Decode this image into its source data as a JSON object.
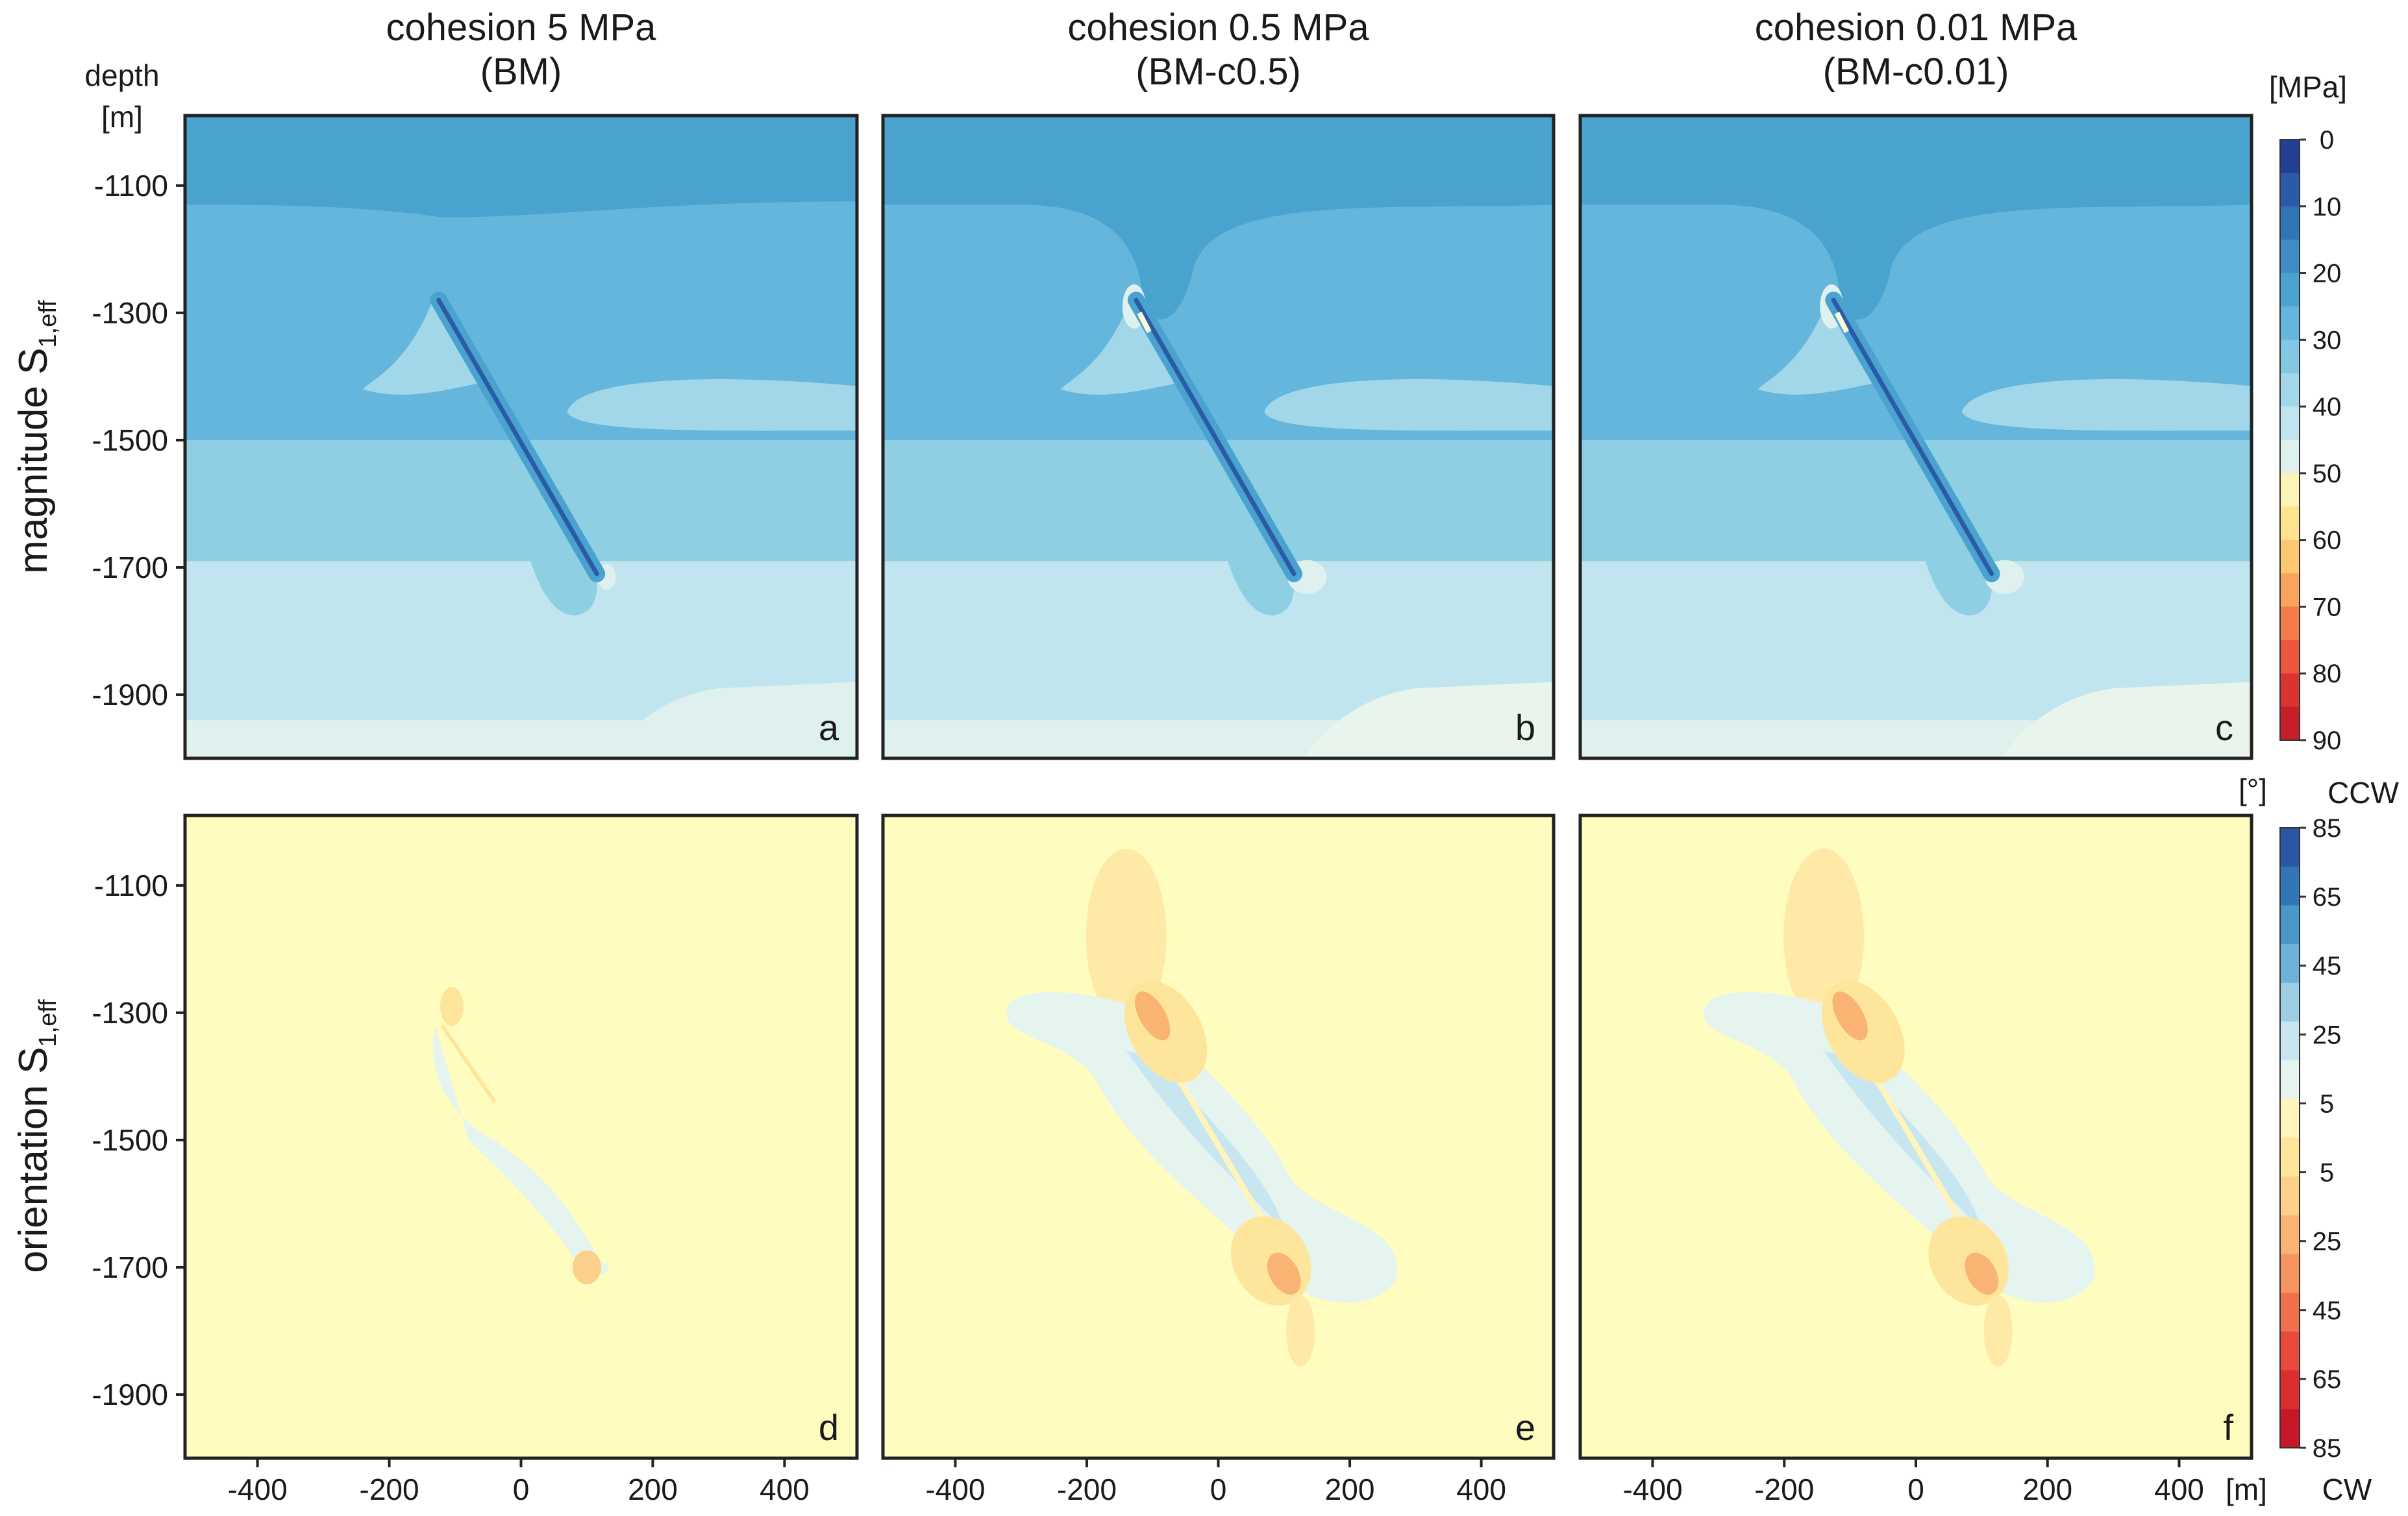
{
  "figure": {
    "column_titles": [
      {
        "line1": "cohesion 5 MPa",
        "line2": "(BM)"
      },
      {
        "line1": "cohesion 0.5 MPa",
        "line2": "(BM-c0.5)"
      },
      {
        "line1": "cohesion 0.01 MPa",
        "line2": "(BM-c0.01)"
      }
    ],
    "depth_label": {
      "line1": "depth",
      "line2": "[m]"
    },
    "row_labels": {
      "magnitude": {
        "text": "magnitude S",
        "sub": "1,eff"
      },
      "orientation": {
        "text": "orientation S",
        "sub": "1,eff"
      }
    },
    "x_unit": "[m]",
    "panel_letters": [
      "a",
      "b",
      "c",
      "d",
      "e",
      "f"
    ]
  },
  "chart_data": [
    {
      "type": "heatmap",
      "row": "magnitude",
      "panels": [
        "a",
        "b",
        "c"
      ],
      "x": {
        "label": "",
        "unit": "[m]",
        "range": [
          -510,
          510
        ],
        "ticks": [
          -400,
          -200,
          0,
          200,
          400
        ]
      },
      "y": {
        "label": "depth [m]",
        "range": [
          -2000,
          -990
        ],
        "ticks": [
          -1100,
          -1300,
          -1500,
          -1700,
          -1900
        ]
      },
      "colorbar": {
        "unit": "[MPa]",
        "range": [
          0,
          90
        ],
        "labels": [
          "0",
          "10",
          "20",
          "30",
          "40",
          "50",
          "60",
          "70",
          "80",
          "90"
        ],
        "levels": [
          0,
          5,
          10,
          15,
          20,
          25,
          30,
          35,
          40,
          45,
          50,
          55,
          60,
          65,
          70,
          75,
          80,
          85,
          90
        ],
        "colors": [
          "#233f94",
          "#2b5ba7",
          "#3275b7",
          "#3f8dc4",
          "#4aa3cf",
          "#64b6dc",
          "#82c7e3",
          "#a2d7e9",
          "#c1e5ee",
          "#dff1ee",
          "#fcf3b6",
          "#fde390",
          "#fcc872",
          "#f9a45c",
          "#f47c4b",
          "#ea573d",
          "#db3430",
          "#c61f2a"
        ]
      },
      "fault": {
        "top": [
          -125,
          -1280
        ],
        "bottom": [
          115,
          -1710
        ]
      }
    },
    {
      "type": "heatmap",
      "row": "orientation",
      "panels": [
        "d",
        "e",
        "f"
      ],
      "x": {
        "label": "",
        "unit": "[m]",
        "range": [
          -510,
          510
        ],
        "ticks": [
          -400,
          -200,
          0,
          200,
          400
        ]
      },
      "y": {
        "label": "depth [m]",
        "range": [
          -2000,
          -990
        ],
        "ticks": [
          -1100,
          -1300,
          -1500,
          -1700,
          -1900
        ]
      },
      "colorbar": {
        "unit": "[°]",
        "top_label": "CCW",
        "bottom_label": "CW",
        "labels": [
          "85",
          "65",
          "45",
          "25",
          "5",
          "5",
          "25",
          "45",
          "65",
          "85"
        ],
        "colors": [
          "#2a56a4",
          "#3276b7",
          "#4a97c9",
          "#6fb1d9",
          "#9ccfe6",
          "#c8e6ef",
          "#e6f4f0",
          "#fff4bc",
          "#fde69c",
          "#fcd088",
          "#f9b473",
          "#f69460",
          "#f06f4d",
          "#e84b3c",
          "#dc2d2f",
          "#c9172a"
        ]
      }
    }
  ]
}
